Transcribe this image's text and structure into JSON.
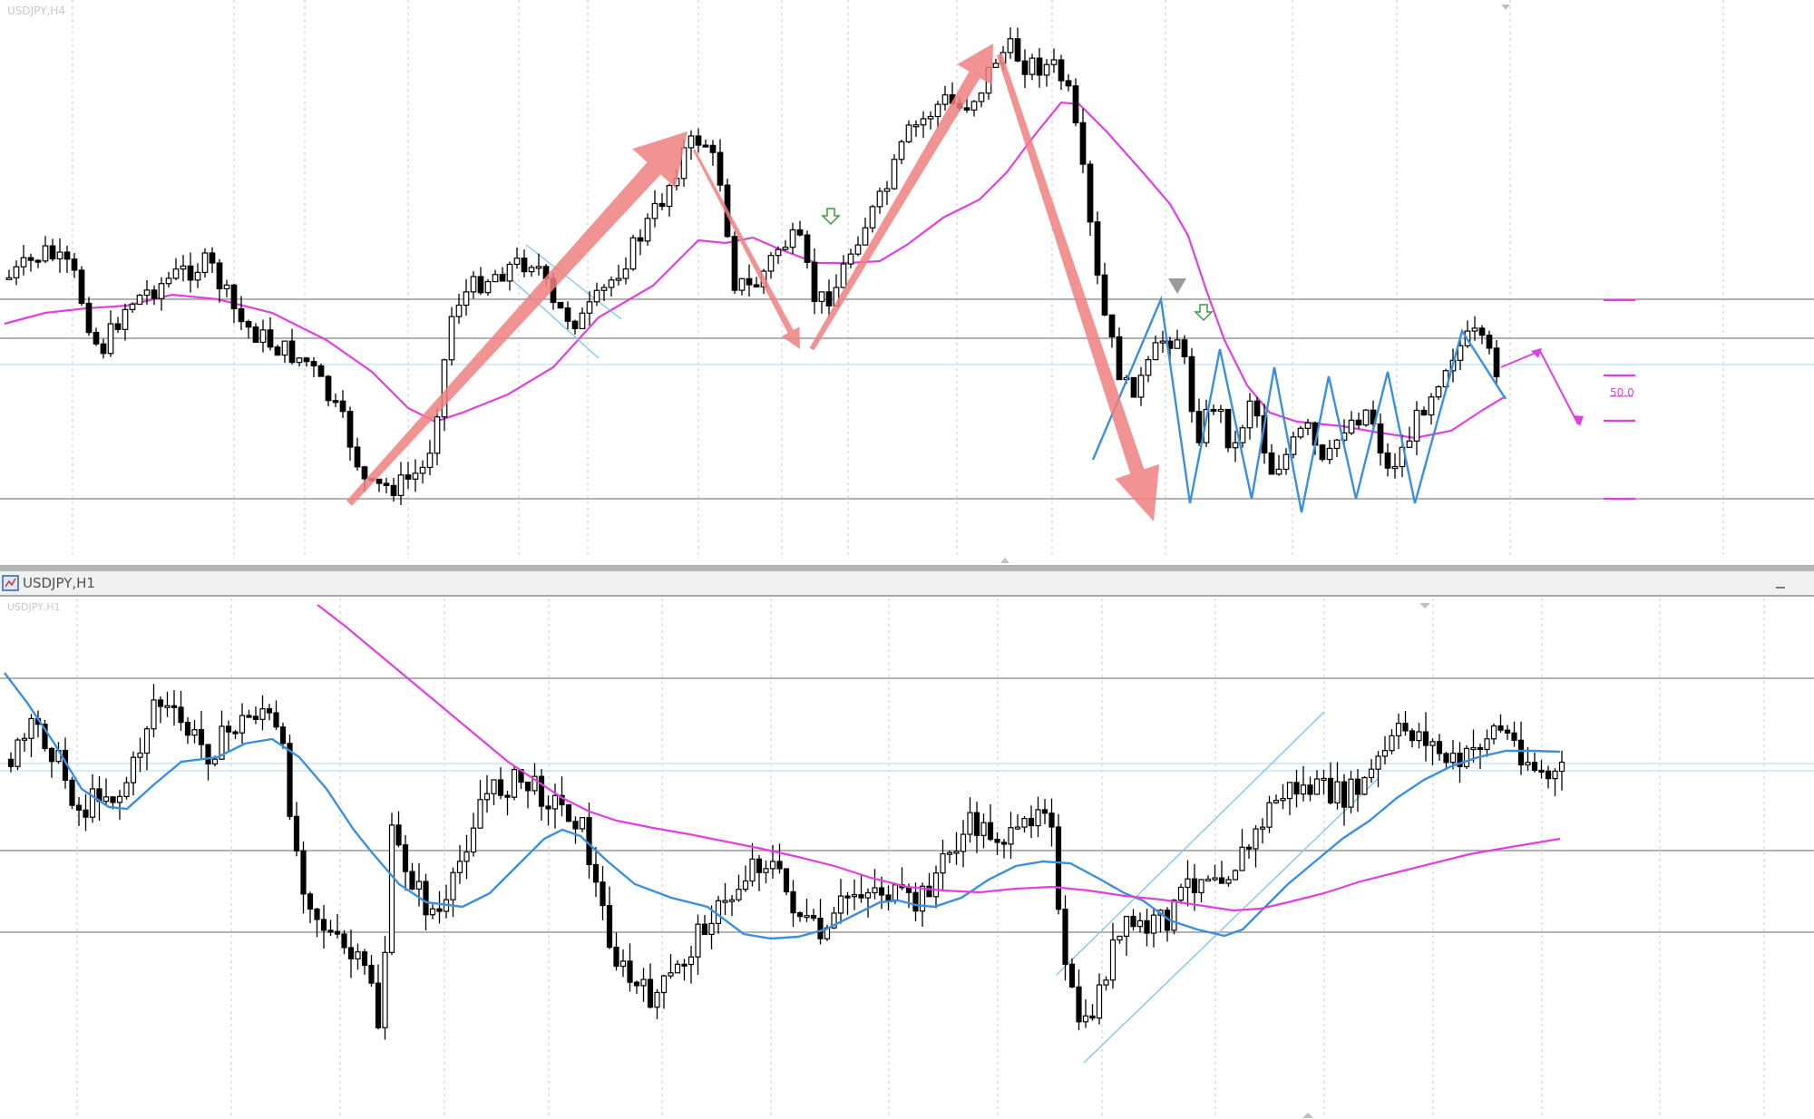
{
  "colors": {
    "background": "#ffffff",
    "grid": "#c9c9c9",
    "level_line": "#9a9a9a",
    "candle": "#000000",
    "ma_magenta": "#e040e0",
    "ma_blue": "#3b8fe0",
    "zigzag": "#3b8fe0",
    "channel": "#7ec2f0",
    "arrow": "#f08080",
    "fib_marks": "#e040e0",
    "fib_label": "#e040e0",
    "divider": "#a8a8a8",
    "title_strip": "#f0f0f0"
  },
  "top_pane": {
    "caption": "USDJPY,H4",
    "fib_label": "50.0",
    "signal_arrows": [
      "down-arrow-icon",
      "down-arrow-icon"
    ],
    "marker": "down-triangle-icon"
  },
  "bottom_pane": {
    "window_title": "USDJPY,H1",
    "caption": "USDJPY,H1",
    "window_icon": "chart-window-icon"
  }
}
